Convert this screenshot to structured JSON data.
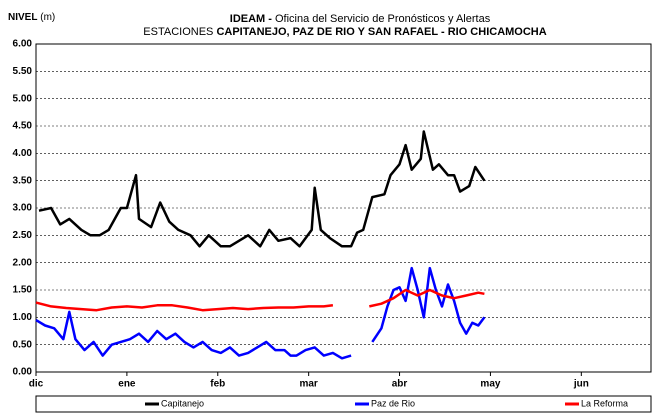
{
  "chart_data": {
    "type": "line",
    "title_lead": "IDEAM -",
    "title": "Oficina del Servicio de Pronósticos y Alertas",
    "subtitle_lead": "ESTACIONES",
    "subtitle": "CAPITANEJO, PAZ DE RIO Y SAN RAFAEL -  RIO CHICAMOCHA",
    "y_label": "NIVEL",
    "y_unit": "(m)",
    "xlim": [
      0,
      203
    ],
    "xticks": [
      {
        "value": 0,
        "label": "dic"
      },
      {
        "value": 30,
        "label": "ene"
      },
      {
        "value": 60,
        "label": "feb"
      },
      {
        "value": 90,
        "label": "mar"
      },
      {
        "value": 120,
        "label": "abr"
      },
      {
        "value": 150,
        "label": "may"
      },
      {
        "value": 180,
        "label": "jun"
      }
    ],
    "ylim": [
      0,
      6
    ],
    "yticks": [
      {
        "value": 0,
        "label": "0.00"
      },
      {
        "value": 0.5,
        "label": "0.50"
      },
      {
        "value": 1,
        "label": "1.00"
      },
      {
        "value": 1.5,
        "label": "1.50"
      },
      {
        "value": 2,
        "label": "2.00"
      },
      {
        "value": 2.5,
        "label": "2.50"
      },
      {
        "value": 3,
        "label": "3.00"
      },
      {
        "value": 3.5,
        "label": "3.50"
      },
      {
        "value": 4,
        "label": "4.00"
      },
      {
        "value": 4.5,
        "label": "4.50"
      },
      {
        "value": 5,
        "label": "5.00"
      },
      {
        "value": 5.5,
        "label": "5.50"
      },
      {
        "value": 6,
        "label": "6.00"
      }
    ],
    "grid": true,
    "legend": "bottom",
    "series": [
      {
        "name": "Capitanejo",
        "color": "#000000",
        "x": [
          1,
          5,
          8,
          11,
          15,
          18,
          21,
          24,
          28,
          30,
          33,
          34,
          38,
          41,
          44,
          47,
          51,
          54,
          57,
          61,
          64,
          67,
          70,
          74,
          77,
          80,
          84,
          87,
          91,
          92,
          94,
          97,
          101,
          104,
          106,
          108,
          111,
          115,
          117,
          120,
          122,
          124,
          127,
          128,
          131,
          133,
          136,
          138,
          140,
          143,
          145,
          148
        ],
        "values": [
          2.95,
          3.0,
          2.7,
          2.8,
          2.6,
          2.5,
          2.5,
          2.6,
          3.0,
          3.0,
          3.6,
          2.8,
          2.65,
          3.1,
          2.75,
          2.6,
          2.5,
          2.3,
          2.5,
          2.3,
          2.3,
          2.4,
          2.5,
          2.3,
          2.6,
          2.4,
          2.45,
          2.3,
          2.6,
          3.37,
          2.6,
          2.45,
          2.3,
          2.3,
          2.55,
          2.6,
          3.2,
          3.25,
          3.6,
          3.8,
          4.15,
          3.7,
          3.9,
          4.4,
          3.7,
          3.8,
          3.6,
          3.6,
          3.3,
          3.4,
          3.75,
          3.5
        ]
      },
      {
        "name": "Paz de Rio",
        "color": "#0000ff",
        "x": [
          0,
          3,
          6,
          9,
          11,
          13,
          16,
          19,
          22,
          25,
          28,
          31,
          34,
          37,
          40,
          43,
          46,
          49,
          52,
          55,
          58,
          61,
          64,
          67,
          70,
          73,
          76,
          79,
          82,
          84,
          86,
          89,
          92,
          95,
          98,
          101,
          104,
          107,
          111,
          114,
          116,
          118,
          120,
          122,
          124,
          126,
          128,
          130,
          132,
          134,
          136,
          138,
          140,
          142,
          144,
          146,
          148
        ],
        "values": [
          0.95,
          0.85,
          0.8,
          0.6,
          1.1,
          0.6,
          0.4,
          0.55,
          0.3,
          0.5,
          0.55,
          0.6,
          0.7,
          0.55,
          0.75,
          0.6,
          0.7,
          0.55,
          0.45,
          0.55,
          0.4,
          0.35,
          0.45,
          0.3,
          0.35,
          0.45,
          0.55,
          0.4,
          0.4,
          0.3,
          0.3,
          0.4,
          0.45,
          0.3,
          0.35,
          0.25,
          0.3,
          null,
          0.55,
          0.8,
          1.2,
          1.5,
          1.55,
          1.3,
          1.9,
          1.5,
          1.0,
          1.9,
          1.5,
          1.2,
          1.6,
          1.3,
          0.9,
          0.7,
          0.9,
          0.85,
          1.0
        ]
      },
      {
        "name": "La Reforma",
        "color": "#ff0000",
        "x": [
          0,
          5,
          10,
          15,
          20,
          25,
          30,
          35,
          40,
          45,
          50,
          55,
          60,
          65,
          70,
          75,
          80,
          85,
          90,
          95,
          98,
          104,
          110,
          114,
          118,
          122,
          126,
          130,
          134,
          138,
          142,
          146,
          148
        ],
        "values": [
          1.27,
          1.2,
          1.17,
          1.15,
          1.13,
          1.18,
          1.2,
          1.18,
          1.22,
          1.22,
          1.18,
          1.13,
          1.15,
          1.17,
          1.15,
          1.17,
          1.18,
          1.18,
          1.2,
          1.2,
          1.22,
          null,
          1.2,
          1.25,
          1.35,
          1.5,
          1.4,
          1.5,
          1.4,
          1.35,
          1.4,
          1.45,
          1.43
        ]
      }
    ]
  }
}
